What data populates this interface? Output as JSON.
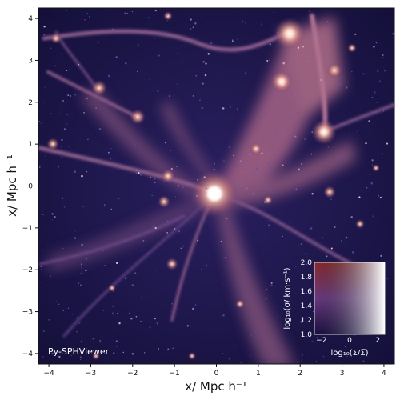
{
  "figure": {
    "xlabel": "x/ Mpc h⁻¹",
    "ylabel": "x/ Mpc h⁻¹",
    "xticks": [
      "−4",
      "−3",
      "−2",
      "−1",
      "0",
      "1",
      "2",
      "3",
      "4"
    ],
    "yticks": [
      "−4",
      "−3",
      "−2",
      "−1",
      "0",
      "1",
      "2",
      "3",
      "4"
    ],
    "xlim": [
      -4.25,
      4.25
    ],
    "ylim": [
      -4.25,
      4.25
    ],
    "watermark": "Py-SPHViewer",
    "colors": {
      "background_dark": "#1a1548",
      "filament": "#a0607f",
      "halo_core": "#fff4e6",
      "inset_dark": "#0c0a1e",
      "inset_red": "#8a2a2a",
      "inset_purple": "#9a4fb0",
      "inset_light": "#ffffff"
    }
  },
  "colorbar_inset": {
    "xlabel": "log₁₀(Σ/Σ̅)",
    "ylabel": "log₁₀(σ/ km·s⁻¹)",
    "xticks": [
      "−2",
      "0",
      "2"
    ],
    "yticks": [
      "1.0",
      "1.2",
      "1.4",
      "1.6",
      "1.8",
      "2.0"
    ],
    "xlim": [
      -2.5,
      2.5
    ],
    "ylim": [
      1.0,
      2.0
    ]
  }
}
